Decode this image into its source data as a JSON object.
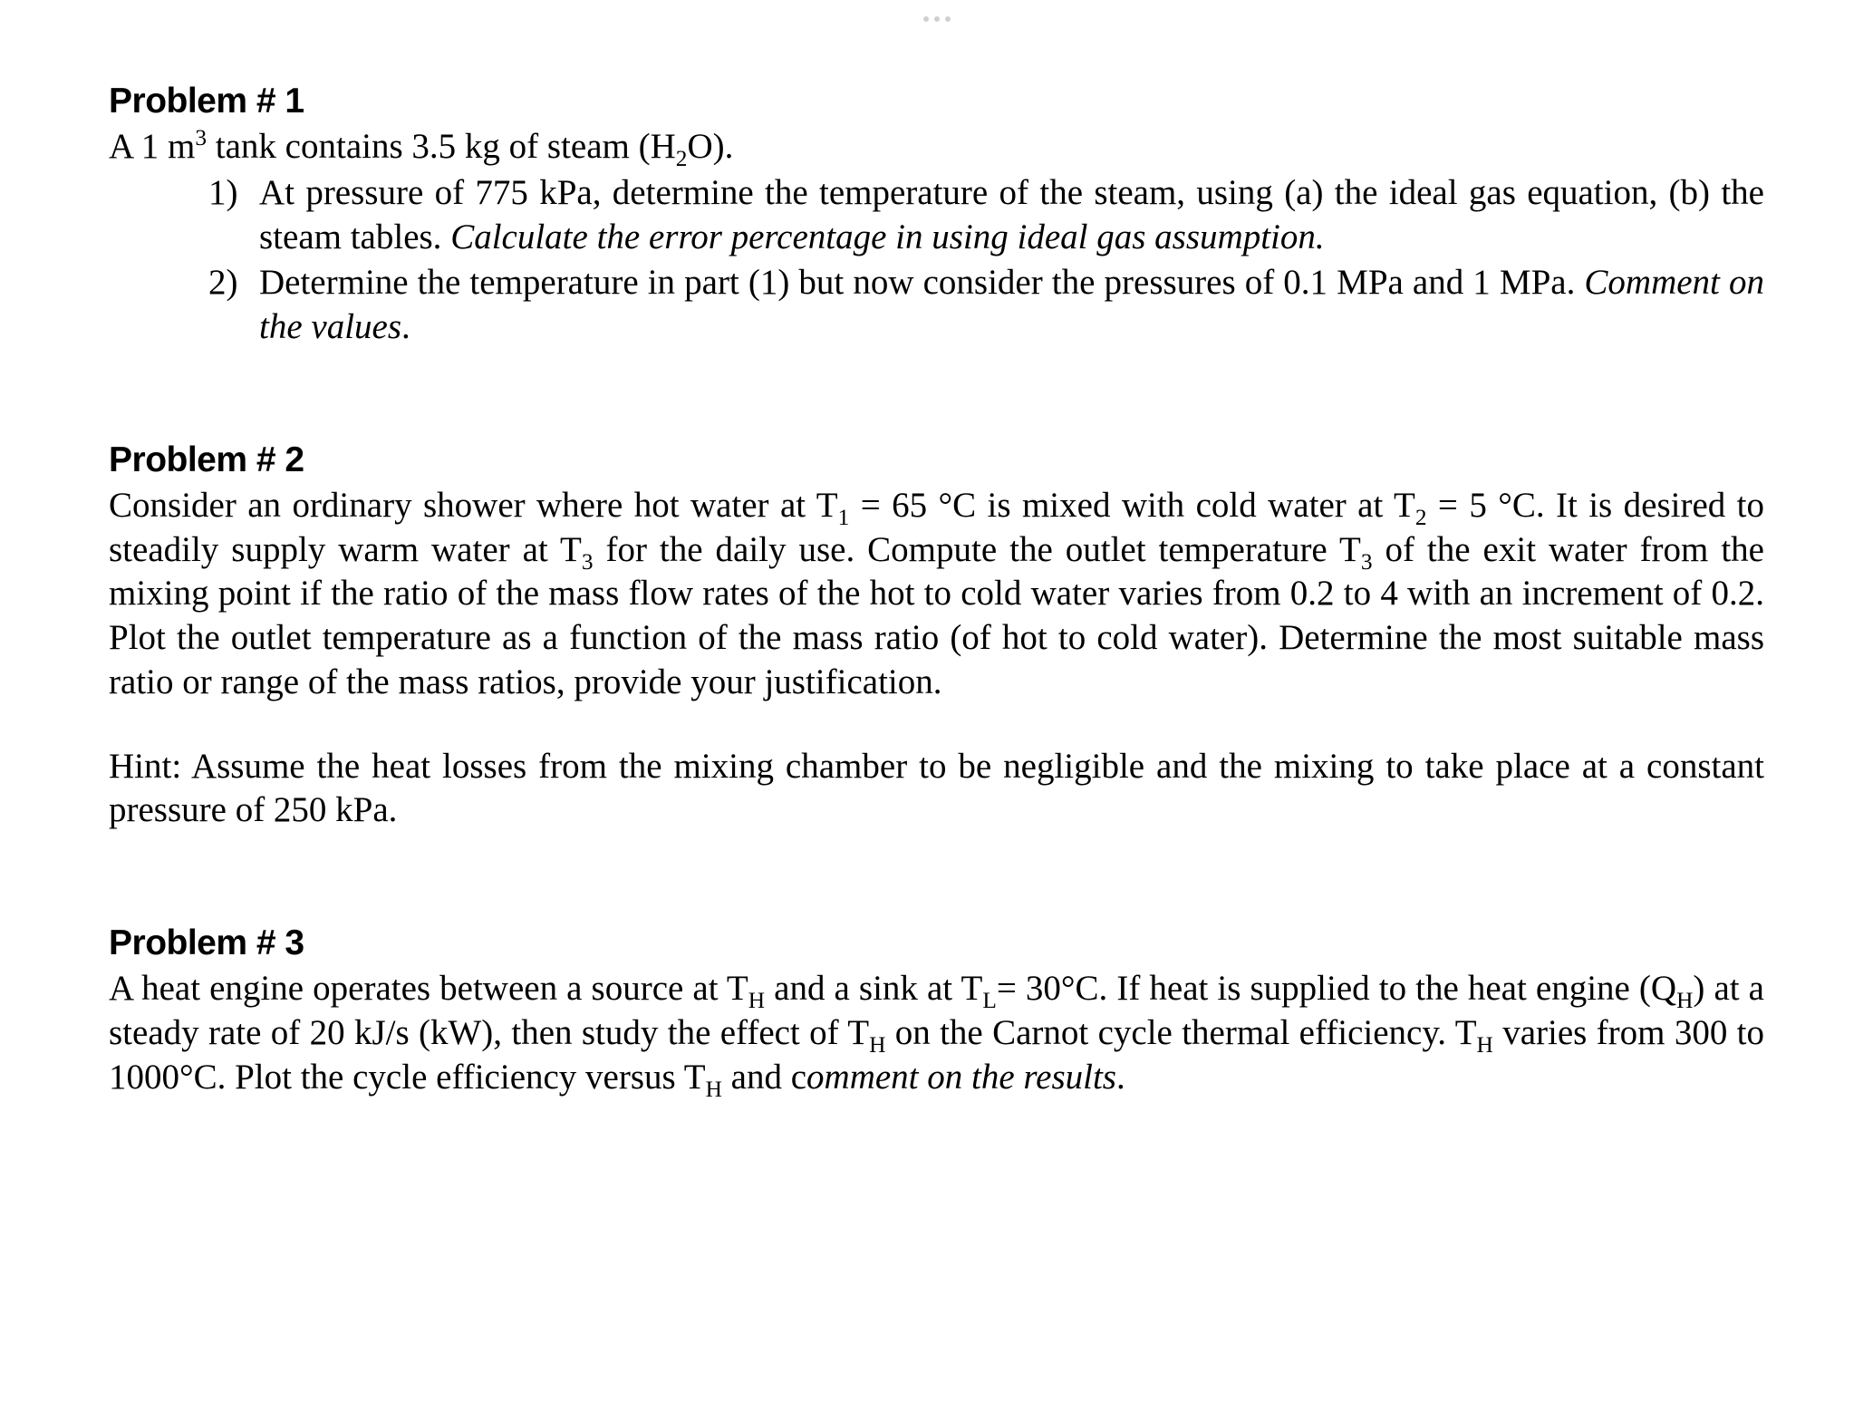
{
  "problem1": {
    "heading": "Problem # 1",
    "intro_pre": "A 1 m",
    "intro_sup": "3",
    "intro_mid": " tank contains 3.5 kg of steam (H",
    "intro_sub": "2",
    "intro_post": "O).",
    "item1_num": "1)",
    "item1_text": "At pressure of 775 kPa, determine the temperature of the steam, using (a) the ideal gas equation, (b) the steam tables. ",
    "item1_italic": "Calculate the error percentage in using ideal gas assumption.",
    "item2_num": "2)",
    "item2_text": "Determine the temperature in part (1) but now consider the pressures of 0.1 MPa and 1 MPa. ",
    "item2_italic": "Comment on the values",
    "item2_end": "."
  },
  "problem2": {
    "heading": "Problem # 2",
    "p1_a": "Consider an ordinary shower where hot water at T",
    "p1_sub1": "1",
    "p1_b": " = 65 °C is mixed with cold water at T",
    "p1_sub2": "2",
    "p1_c": " = 5 °C. It is desired to steadily supply warm water at T",
    "p1_sub3": "3",
    "p1_d": " for the daily use. Compute the outlet temperature T",
    "p1_sub4": "3",
    "p1_e": " of the exit water from the mixing point if the ratio of the mass flow rates of the hot to cold water varies from 0.2 to 4 with an increment of 0.2. Plot the outlet temperature as a function of the mass ratio (of hot to cold water).  Determine the most suitable mass ratio or range of the mass ratios, provide your justification.",
    "hint": "Hint: Assume the heat losses from the mixing chamber to be negligible and the mixing to take place at a constant pressure of 250 kPa."
  },
  "problem3": {
    "heading": "Problem # 3",
    "p1_a": "A heat engine operates between a source at T",
    "p1_subH1": "H",
    "p1_b": " and a sink at T",
    "p1_subL": "L",
    "p1_c": "= 30°C. If heat is supplied to the heat engine (Q",
    "p1_subH2": "H",
    "p1_d": ") at a steady rate of 20 kJ/s (kW), then study the effect of T",
    "p1_subH3": "H",
    "p1_e": " on the Carnot cycle thermal efficiency. T",
    "p1_subH4": "H",
    "p1_f": " varies from 300 to 1000°C. Plot the cycle efficiency versus T",
    "p1_subH5": "H",
    "p1_g": " and c",
    "p1_italic": "omment on the results",
    "p1_end": "."
  }
}
